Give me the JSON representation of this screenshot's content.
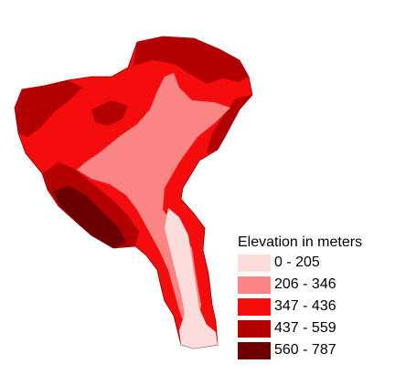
{
  "legend": {
    "title": "Elevation in meters",
    "classes": [
      {
        "label": "0 - 205",
        "color": "#fddcdc"
      },
      {
        "label": "206 - 346",
        "color": "#f98585"
      },
      {
        "label": "347 - 436",
        "color": "#f50d0d"
      },
      {
        "label": "437 - 559",
        "color": "#b30000"
      },
      {
        "label": "560 - 787",
        "color": "#6c0000"
      }
    ]
  }
}
